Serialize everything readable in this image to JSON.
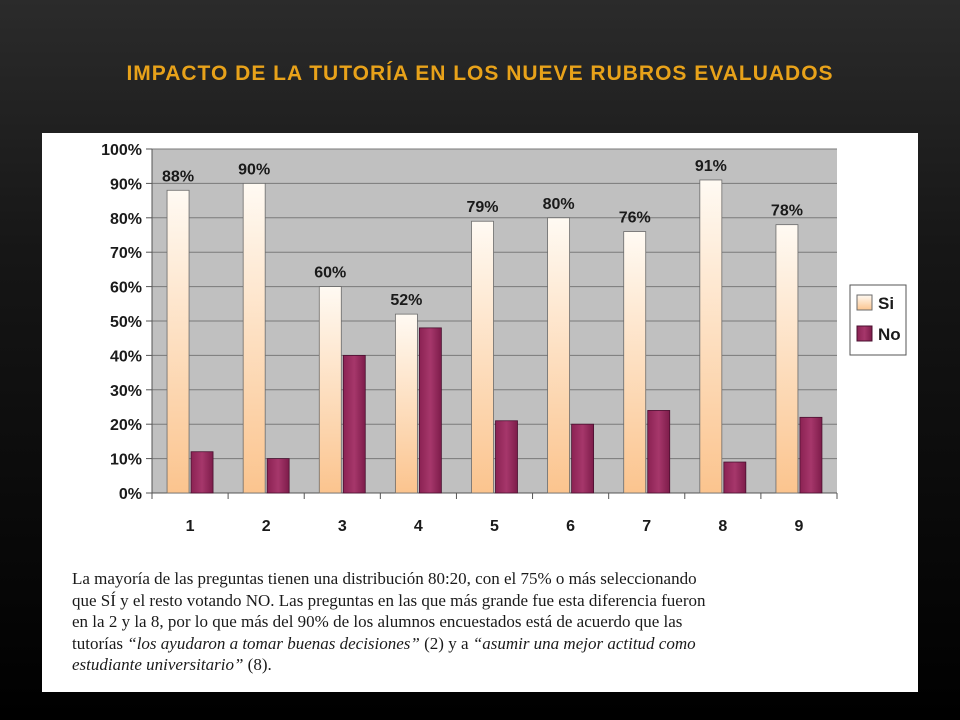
{
  "slide": {
    "title": "IMPACTO DE LA TUTORÍA EN LOS NUEVE RUBROS EVALUADOS"
  },
  "chart_data": {
    "type": "bar",
    "title": "",
    "xlabel": "",
    "ylabel": "",
    "categories": [
      "1",
      "2",
      "3",
      "4",
      "5",
      "6",
      "7",
      "8",
      "9"
    ],
    "series": [
      {
        "name": "Si",
        "values": [
          88,
          90,
          60,
          52,
          79,
          80,
          76,
          91,
          78
        ],
        "color": "#fbd2a6"
      },
      {
        "name": "No",
        "values": [
          12,
          10,
          40,
          48,
          21,
          20,
          24,
          9,
          22
        ],
        "color": "#9c2f62"
      }
    ],
    "data_labels": [
      "88%",
      "90%",
      "60%",
      "52%",
      "79%",
      "80%",
      "76%",
      "91%",
      "78%"
    ],
    "y_ticks": [
      "0%",
      "10%",
      "20%",
      "30%",
      "40%",
      "50%",
      "60%",
      "70%",
      "80%",
      "90%",
      "100%"
    ],
    "ylim": [
      0,
      100
    ],
    "grid": true,
    "plot_background": "#c0c0c0",
    "legend_position": "right"
  },
  "caption": {
    "line1": "La mayoría de las preguntas tienen una distribución 80:20, con el 75%  o más seleccionando",
    "line2": "que SÍ y el resto votando NO. Las preguntas en las que más grande fue esta diferencia fueron",
    "line3": "en la 2 y la 8, por lo que más del 90% de los alumnos encuestados está de acuerdo que las",
    "line4_a": "tutorías ",
    "line4_quote1": "“los ayudaron a tomar buenas decisiones”",
    "line4_b": " (2) y a ",
    "line4_quote2": "“asumir una mejor actitud como",
    "line5_quote2": "estudiante universitario”",
    "line5_b": " (8)."
  }
}
